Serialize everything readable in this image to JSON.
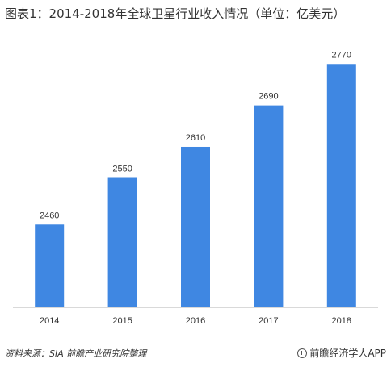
{
  "title": "图表1：2014-2018年全球卫星行业收入情况（单位：亿美元）",
  "footer": {
    "source": "资料来源：SIA  前瞻产业研究院整理",
    "brand": "前瞻经济学人APP",
    "brand_icon": "qianzhan-logo-icon"
  },
  "colors": {
    "bar": "#3f87e2",
    "axis": "#d9d9d9"
  },
  "chart_data": {
    "type": "bar",
    "title": "图表1：2014-2018年全球卫星行业收入情况（单位：亿美元）",
    "categories": [
      "2014",
      "2015",
      "2016",
      "2017",
      "2018"
    ],
    "values": [
      2460,
      2550,
      2610,
      2690,
      2770
    ],
    "data_labels": [
      "2460",
      "2550",
      "2610",
      "2690",
      "2770"
    ],
    "xlabel": "",
    "ylabel": "",
    "ylim": [
      2300,
      2800
    ],
    "grid": false,
    "legend": "none"
  }
}
